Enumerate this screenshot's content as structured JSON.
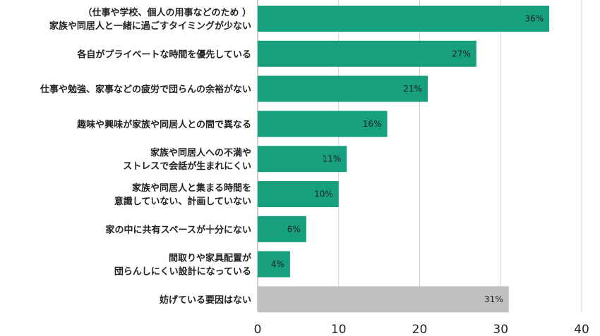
{
  "chart_data": {
    "type": "bar",
    "orientation": "horizontal",
    "categories": [
      [
        "（仕事や学校、個人の用事などのため ）",
        "家族や同居人と一緒に過ごすタイミングが少ない"
      ],
      [
        "各自がプライベートな時間を優先している"
      ],
      [
        "仕事や勉強、家事などの疲労で団らんの余裕がない"
      ],
      [
        "趣味や興味が家族や同居人との間で異なる"
      ],
      [
        "家族や同居人への不満や",
        "ストレスで会話が生まれにくい"
      ],
      [
        "家族や同居人と集まる時間を",
        "意識していない、計画していない"
      ],
      [
        "家の中に共有スペースが十分にない"
      ],
      [
        "間取りや家具配置が",
        "団らんしにくい設計になっている"
      ],
      [
        "妨げている要因はない"
      ]
    ],
    "values": [
      36,
      27,
      21,
      16,
      11,
      10,
      6,
      4,
      31
    ],
    "value_labels": [
      "36%",
      "27%",
      "21%",
      "16%",
      "11%",
      "10%",
      "6%",
      "4%",
      "31%"
    ],
    "colors": [
      "#16a07e",
      "#16a07e",
      "#16a07e",
      "#16a07e",
      "#16a07e",
      "#16a07e",
      "#16a07e",
      "#16a07e",
      "#c0c0c0"
    ],
    "xlim": [
      0,
      40
    ],
    "xticks": [
      "0",
      "10",
      "20",
      "30",
      "40"
    ],
    "grid": true,
    "title": "",
    "xlabel": "",
    "ylabel": ""
  }
}
